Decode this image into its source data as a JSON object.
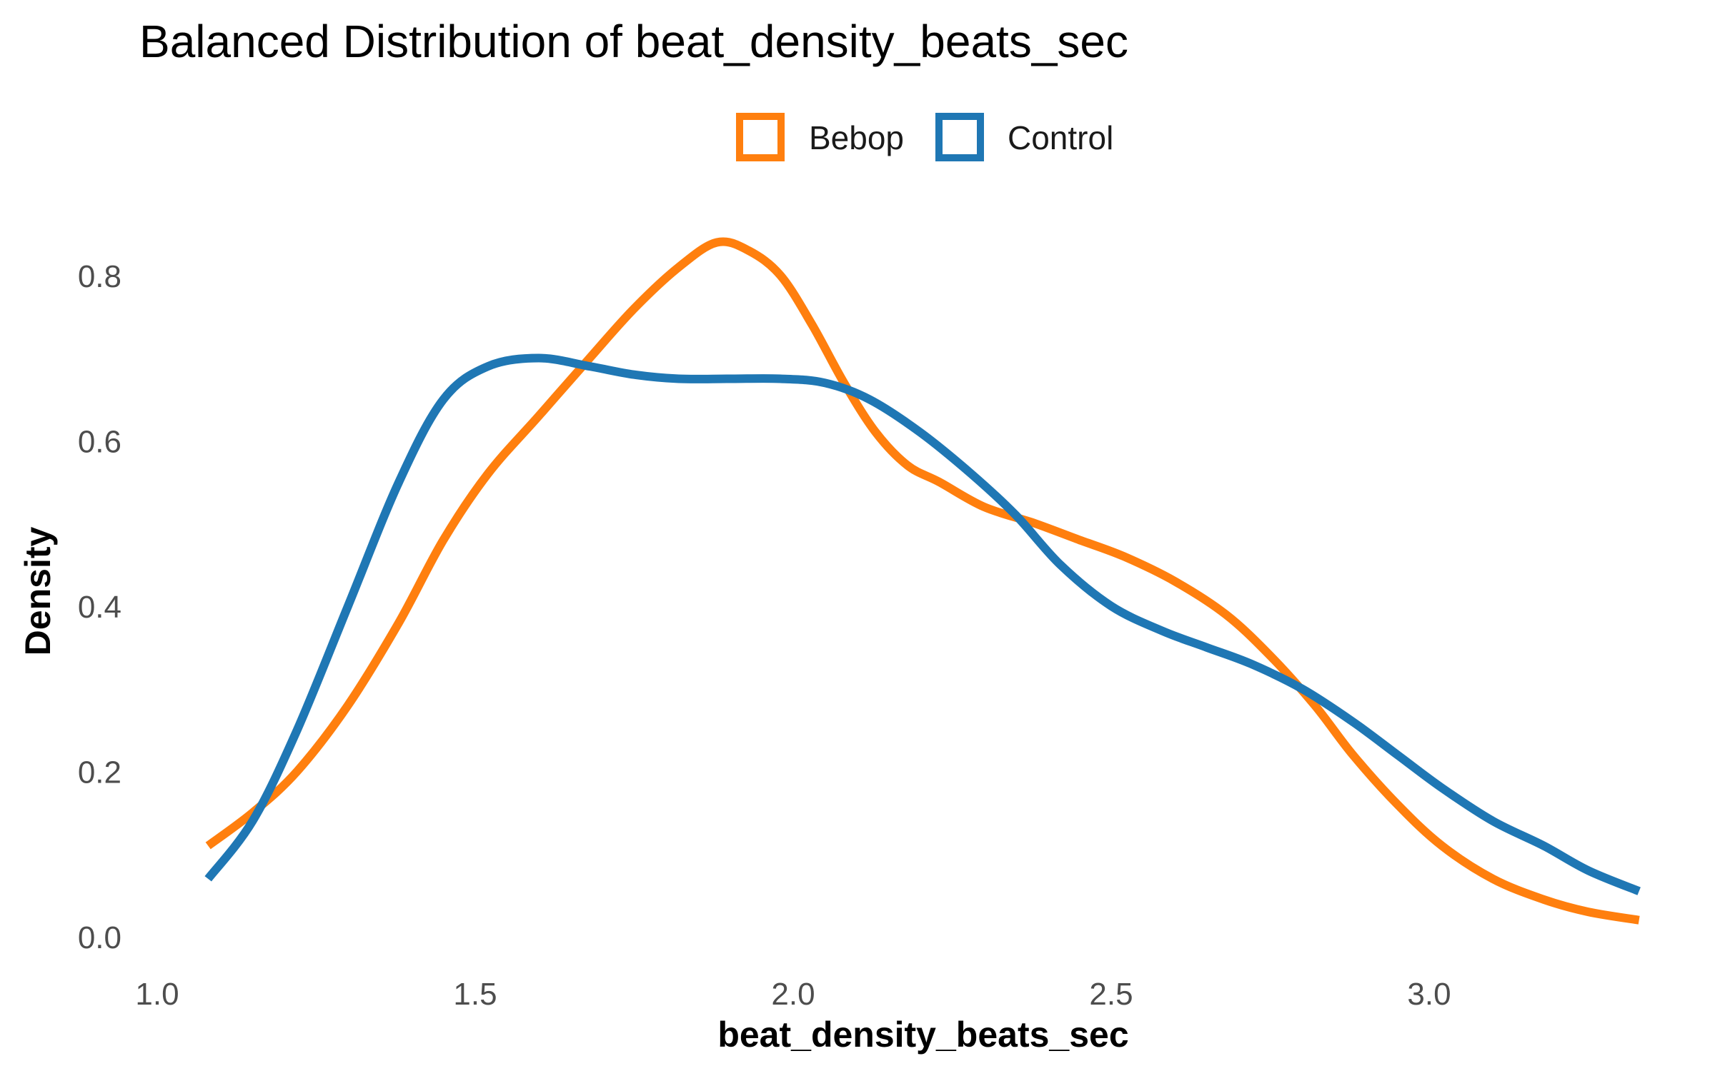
{
  "chart_data": {
    "type": "line",
    "title": "Balanced Distribution of beat_density_beats_sec",
    "xlabel": "beat_density_beats_sec",
    "ylabel": "Density",
    "xlim": [
      1.0,
      3.35
    ],
    "ylim": [
      -0.02,
      0.9
    ],
    "x_ticks": [
      1.0,
      1.5,
      2.0,
      2.5,
      3.0
    ],
    "x_tick_labels": [
      "1.0",
      "1.5",
      "2.0",
      "2.5",
      "3.0"
    ],
    "y_ticks": [
      0.0,
      0.2,
      0.4,
      0.6,
      0.8
    ],
    "y_tick_labels": [
      "0.0",
      "0.2",
      "0.4",
      "0.6",
      "0.8"
    ],
    "grid": false,
    "legend_position": "top",
    "series": [
      {
        "name": "Bebop",
        "color": "#ff7f0e",
        "x": [
          1.08,
          1.15,
          1.22,
          1.3,
          1.38,
          1.45,
          1.52,
          1.6,
          1.68,
          1.75,
          1.82,
          1.88,
          1.93,
          1.98,
          2.03,
          2.08,
          2.13,
          2.18,
          2.23,
          2.3,
          2.38,
          2.45,
          2.52,
          2.6,
          2.68,
          2.75,
          2.82,
          2.88,
          2.95,
          3.02,
          3.1,
          3.18,
          3.25,
          3.33
        ],
        "y": [
          0.11,
          0.15,
          0.2,
          0.28,
          0.38,
          0.48,
          0.56,
          0.63,
          0.7,
          0.76,
          0.81,
          0.84,
          0.83,
          0.8,
          0.74,
          0.67,
          0.61,
          0.57,
          0.55,
          0.52,
          0.5,
          0.48,
          0.46,
          0.43,
          0.39,
          0.34,
          0.28,
          0.22,
          0.16,
          0.11,
          0.07,
          0.045,
          0.03,
          0.02
        ]
      },
      {
        "name": "Control",
        "color": "#1f77b4",
        "x": [
          1.08,
          1.15,
          1.22,
          1.3,
          1.38,
          1.45,
          1.52,
          1.6,
          1.68,
          1.75,
          1.82,
          1.9,
          1.98,
          2.05,
          2.12,
          2.2,
          2.28,
          2.35,
          2.42,
          2.5,
          2.58,
          2.65,
          2.72,
          2.8,
          2.88,
          2.95,
          3.02,
          3.1,
          3.18,
          3.25,
          3.33
        ],
        "y": [
          0.07,
          0.14,
          0.25,
          0.4,
          0.55,
          0.65,
          0.69,
          0.7,
          0.69,
          0.68,
          0.675,
          0.675,
          0.675,
          0.67,
          0.65,
          0.61,
          0.56,
          0.51,
          0.45,
          0.4,
          0.37,
          0.35,
          0.33,
          0.3,
          0.26,
          0.22,
          0.18,
          0.14,
          0.11,
          0.08,
          0.055
        ]
      }
    ]
  }
}
